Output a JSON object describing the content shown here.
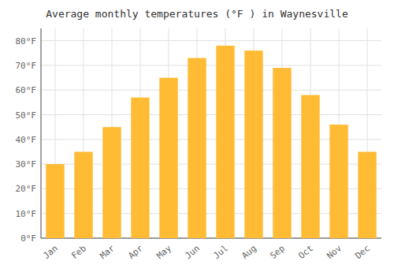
{
  "chart_data": {
    "type": "bar",
    "title": "Average monthly temperatures (°F ) in Waynesville",
    "categories": [
      "Jan",
      "Feb",
      "Mar",
      "Apr",
      "May",
      "Jun",
      "Jul",
      "Aug",
      "Sep",
      "Oct",
      "Nov",
      "Dec"
    ],
    "values": [
      30,
      35,
      45,
      57,
      65,
      73,
      78,
      76,
      69,
      58,
      46,
      35
    ],
    "color": "#FFBB33",
    "ylim": [
      0,
      85
    ],
    "yticks": [
      {
        "value": 0,
        "label": "0°F"
      },
      {
        "value": 10,
        "label": "10°F"
      },
      {
        "value": 20,
        "label": "20°F"
      },
      {
        "value": 30,
        "label": "30°F"
      },
      {
        "value": 40,
        "label": "40°F"
      },
      {
        "value": 50,
        "label": "50°F"
      },
      {
        "value": 60,
        "label": "60°F"
      },
      {
        "value": 70,
        "label": "70°F"
      },
      {
        "value": 80,
        "label": "80°F"
      }
    ],
    "grid": true
  }
}
